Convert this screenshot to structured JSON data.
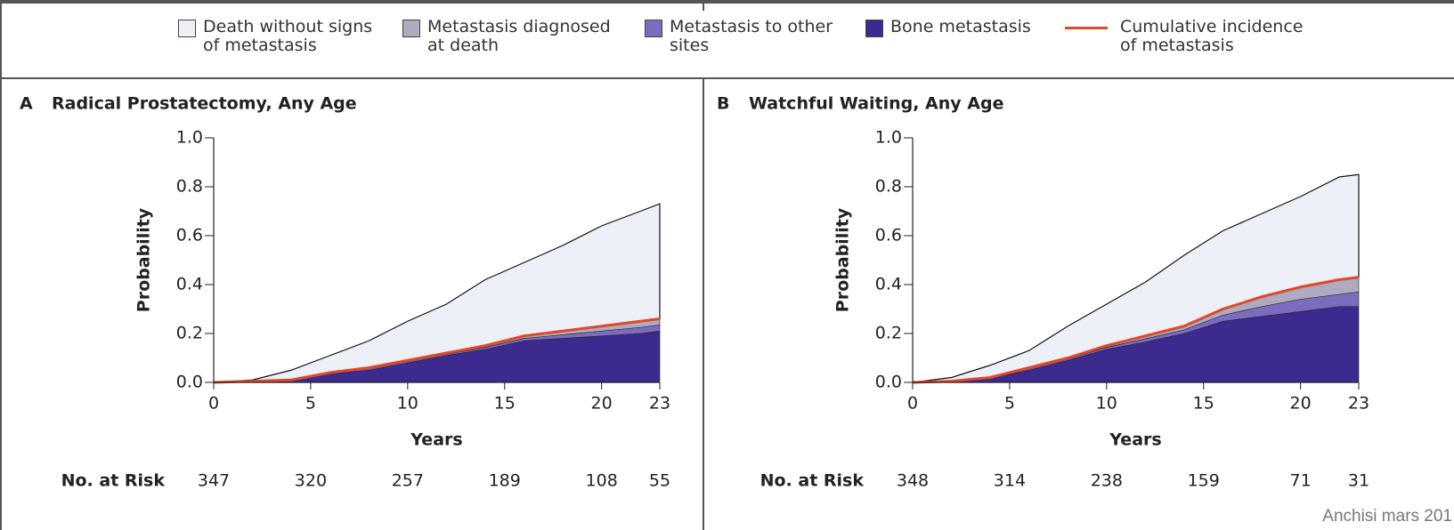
{
  "legend": [
    {
      "name": "Death without signs of metastasis",
      "color": "#eef0f8"
    },
    {
      "name": "Metastasis diagnosed at death",
      "color": "#aeaabf"
    },
    {
      "name": "Metastasis to other sites",
      "color": "#7d6cbd"
    },
    {
      "name": "Bone metastasis",
      "color": "#3c2a8e"
    },
    {
      "name": "Cumulative incidence of metastasis",
      "color": "#e0482a"
    }
  ],
  "watermark": "Anchisi mars 201",
  "chart_data": [
    {
      "type": "stacked_area",
      "panel": "A",
      "title": "Radical Prostatectomy, Any Age",
      "x_label": "Years",
      "y_label": "Probability",
      "x": [
        0,
        2,
        4,
        6,
        8,
        10,
        12,
        14,
        16,
        18,
        20,
        22,
        23
      ],
      "stack": [
        {
          "values": [
            0,
            0.003,
            0.008,
            0.035,
            0.05,
            0.08,
            0.11,
            0.135,
            0.17,
            0.18,
            0.19,
            0.2,
            0.21
          ]
        },
        {
          "values": [
            0,
            0.001,
            0.001,
            0.003,
            0.005,
            0.005,
            0.005,
            0.008,
            0.01,
            0.015,
            0.02,
            0.025,
            0.025
          ]
        },
        {
          "values": [
            0,
            0.001,
            0.001,
            0.002,
            0.005,
            0.005,
            0.005,
            0.007,
            0.01,
            0.015,
            0.02,
            0.025,
            0.025
          ]
        },
        {
          "values": [
            0,
            0.005,
            0.04,
            0.07,
            0.11,
            0.16,
            0.2,
            0.27,
            0.3,
            0.35,
            0.41,
            0.45,
            0.47
          ]
        }
      ],
      "incidence": [
        0,
        0.005,
        0.01,
        0.04,
        0.06,
        0.09,
        0.12,
        0.15,
        0.19,
        0.21,
        0.23,
        0.25,
        0.26
      ],
      "xlim": [
        0,
        23
      ],
      "xticks": [
        0,
        5,
        10,
        15,
        20,
        23
      ],
      "ylim": [
        0,
        1
      ],
      "yticks": [
        {
          "value": 0,
          "label": "0.0"
        },
        0.2,
        0.4,
        0.6,
        0.8,
        {
          "value": 1,
          "label": "1.0"
        }
      ],
      "at_risk": {
        "label": "No. at Risk",
        "values": [
          347,
          320,
          257,
          189,
          108,
          55
        ]
      }
    },
    {
      "type": "stacked_area",
      "panel": "B",
      "title": "Watchful Waiting, Any Age",
      "x_label": "Years",
      "y_label": "Probability",
      "x": [
        0,
        2,
        4,
        6,
        8,
        10,
        12,
        14,
        16,
        18,
        20,
        22,
        23
      ],
      "stack": [
        {
          "values": [
            0,
            0.004,
            0.017,
            0.05,
            0.09,
            0.135,
            0.165,
            0.2,
            0.25,
            0.27,
            0.29,
            0.31,
            0.31
          ]
        },
        {
          "values": [
            0,
            0.001,
            0.002,
            0.005,
            0.005,
            0.008,
            0.013,
            0.015,
            0.025,
            0.04,
            0.05,
            0.05,
            0.06
          ]
        },
        {
          "values": [
            0,
            0,
            0.001,
            0.005,
            0.005,
            0.007,
            0.012,
            0.015,
            0.025,
            0.04,
            0.05,
            0.06,
            0.06
          ]
        },
        {
          "values": [
            0,
            0.015,
            0.05,
            0.07,
            0.13,
            0.17,
            0.22,
            0.29,
            0.32,
            0.34,
            0.37,
            0.42,
            0.42
          ]
        }
      ],
      "incidence": [
        0,
        0.005,
        0.02,
        0.06,
        0.1,
        0.15,
        0.19,
        0.23,
        0.3,
        0.35,
        0.39,
        0.42,
        0.43
      ],
      "xlim": [
        0,
        23
      ],
      "xticks": [
        0,
        5,
        10,
        15,
        20,
        23
      ],
      "ylim": [
        0,
        1
      ],
      "yticks": [
        {
          "value": 0,
          "label": "0.0"
        },
        0.2,
        0.4,
        0.6,
        0.8,
        {
          "value": 1,
          "label": "1.0"
        }
      ],
      "at_risk": {
        "label": "No. at Risk",
        "values": [
          348,
          314,
          238,
          159,
          71,
          31
        ]
      }
    }
  ]
}
